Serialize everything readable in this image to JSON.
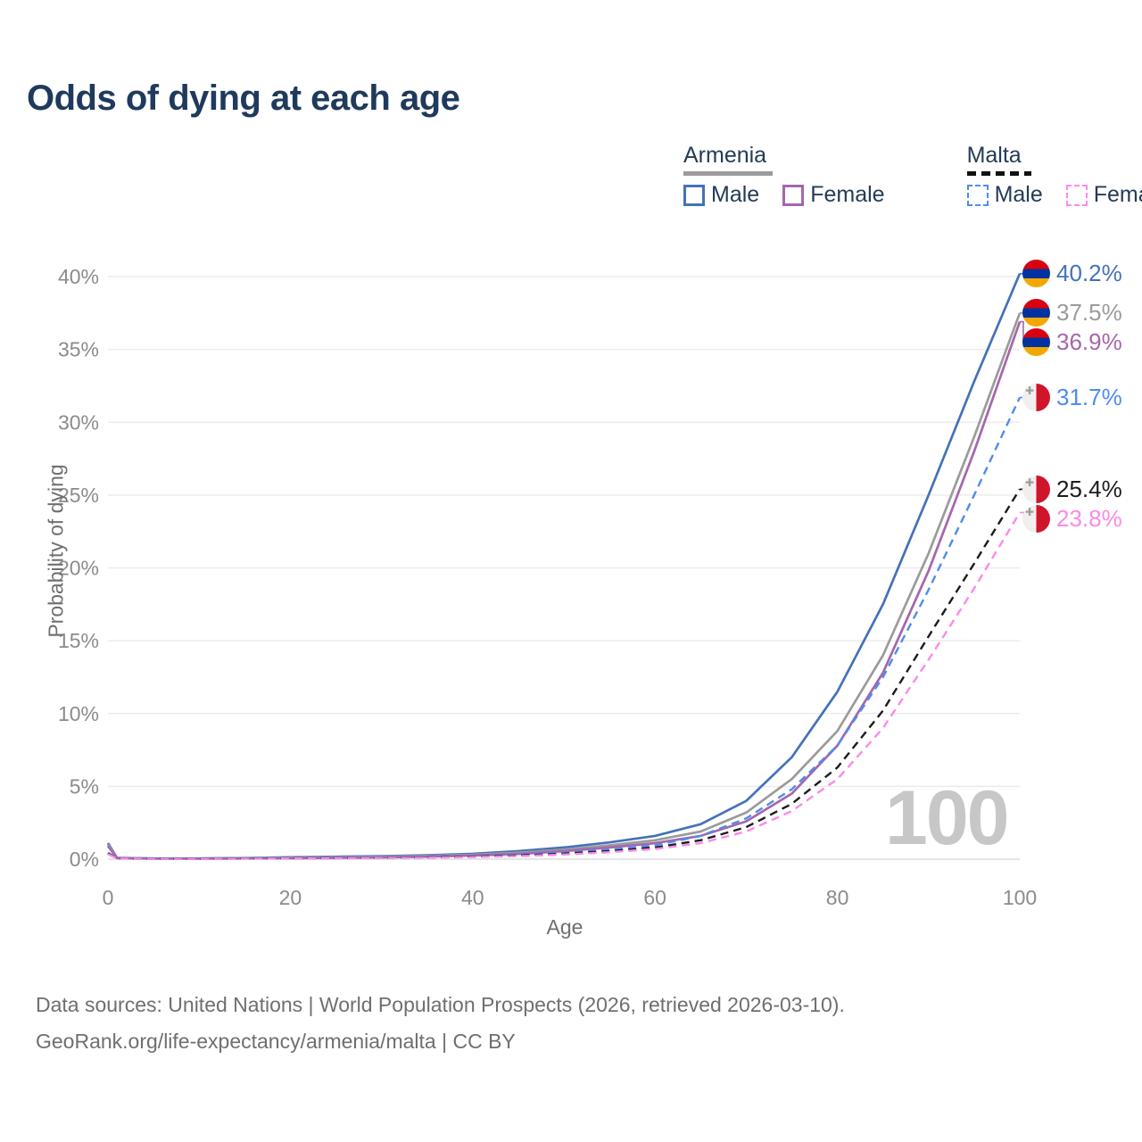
{
  "title": "Odds of dying at each age",
  "watermark": "100",
  "colors": {
    "title_text": "#1e3a5c",
    "axis_text": "#6f6f6f",
    "tick_text": "#8b8b8b",
    "gridline": "#ececec",
    "baseline": "#dcdcdc",
    "watermark": "#c7c7c7",
    "armenia_flag": [
      "#d90012",
      "#0033a0",
      "#f2a800"
    ],
    "malta_flag": [
      "#f1efed",
      "#cf142b"
    ]
  },
  "legend": {
    "groups": [
      {
        "country": "Armenia",
        "line_style": "solid",
        "line_color": "#9b9b9b",
        "items": [
          {
            "label": "Male",
            "color": "#4472b9",
            "dashed": false
          },
          {
            "label": "Female",
            "color": "#a666ad",
            "dashed": false
          }
        ]
      },
      {
        "country": "Malta",
        "line_style": "dashed",
        "line_color": "#111111",
        "items": [
          {
            "label": "Male",
            "color": "#4e8cf0",
            "dashed": true
          },
          {
            "label": "Female",
            "color": "#fb8ae8",
            "dashed": true
          }
        ]
      }
    ]
  },
  "chart_data": {
    "type": "line",
    "title": "Odds of dying at each age",
    "xlabel": "Age",
    "ylabel": "Probability of dying",
    "xlim": [
      0,
      100
    ],
    "ylim": [
      0,
      40
    ],
    "grid": "horizontal",
    "legend_position": "top-right",
    "x_ticks": [
      {
        "value": 0,
        "label": "0"
      },
      {
        "value": 20,
        "label": "20"
      },
      {
        "value": 40,
        "label": "40"
      },
      {
        "value": 60,
        "label": "60"
      },
      {
        "value": 80,
        "label": "80"
      },
      {
        "value": 100,
        "label": "100"
      }
    ],
    "y_ticks": [
      {
        "value": 0,
        "label": "0%"
      },
      {
        "value": 5,
        "label": "5%"
      },
      {
        "value": 10,
        "label": "10%"
      },
      {
        "value": 15,
        "label": "15%"
      },
      {
        "value": 20,
        "label": "20%"
      },
      {
        "value": 25,
        "label": "25%"
      },
      {
        "value": 30,
        "label": "30%"
      },
      {
        "value": 35,
        "label": "35%"
      },
      {
        "value": 40,
        "label": "40%"
      }
    ],
    "x": [
      0,
      1,
      5,
      10,
      15,
      20,
      25,
      30,
      35,
      40,
      45,
      50,
      55,
      60,
      65,
      70,
      75,
      80,
      85,
      90,
      95,
      100
    ],
    "series": [
      {
        "name": "Armenia Male",
        "country": "Armenia",
        "sex": "male",
        "flag": "armenia",
        "color": "#4472b9",
        "dashed": false,
        "end_label": "40.2%",
        "end_value": 40.2,
        "values": [
          1.1,
          0.09,
          0.05,
          0.05,
          0.08,
          0.13,
          0.17,
          0.21,
          0.27,
          0.37,
          0.55,
          0.8,
          1.15,
          1.6,
          2.4,
          4.0,
          7.0,
          11.5,
          17.5,
          25.0,
          32.8,
          40.2
        ]
      },
      {
        "name": "Armenia Both sexes",
        "country": "Armenia",
        "sex": "all",
        "flag": "armenia",
        "color": "#9b9b9b",
        "dashed": false,
        "end_label": "37.5%",
        "end_value": 37.5,
        "values": [
          1.0,
          0.08,
          0.04,
          0.04,
          0.07,
          0.1,
          0.13,
          0.17,
          0.22,
          0.3,
          0.45,
          0.65,
          0.95,
          1.3,
          1.9,
          3.2,
          5.5,
          8.8,
          14.0,
          21.0,
          29.0,
          37.5
        ]
      },
      {
        "name": "Armenia Female",
        "country": "Armenia",
        "sex": "female",
        "flag": "armenia",
        "color": "#a666ad",
        "dashed": false,
        "end_label": "36.9%",
        "end_value": 36.9,
        "values": [
          0.9,
          0.07,
          0.04,
          0.04,
          0.05,
          0.07,
          0.09,
          0.12,
          0.17,
          0.25,
          0.36,
          0.55,
          0.8,
          1.1,
          1.6,
          2.6,
          4.5,
          7.8,
          12.8,
          19.8,
          28.0,
          36.9
        ]
      },
      {
        "name": "Malta Male",
        "country": "Malta",
        "sex": "male",
        "flag": "malta",
        "color": "#4e8cf0",
        "dashed": true,
        "end_label": "31.7%",
        "end_value": 31.7,
        "values": [
          0.45,
          0.05,
          0.03,
          0.03,
          0.05,
          0.07,
          0.09,
          0.11,
          0.14,
          0.2,
          0.3,
          0.45,
          0.65,
          0.95,
          1.6,
          2.8,
          4.8,
          7.8,
          12.5,
          18.5,
          25.0,
          31.7
        ]
      },
      {
        "name": "Malta Both sexes",
        "country": "Malta",
        "sex": "all",
        "flag": "malta",
        "color": "#1c1c1c",
        "dashed": true,
        "end_label": "25.4%",
        "end_value": 25.4,
        "values": [
          0.4,
          0.04,
          0.03,
          0.03,
          0.04,
          0.06,
          0.07,
          0.09,
          0.12,
          0.17,
          0.25,
          0.38,
          0.55,
          0.8,
          1.3,
          2.2,
          3.8,
          6.3,
          10.2,
          15.3,
          20.3,
          25.4
        ]
      },
      {
        "name": "Malta Female",
        "country": "Malta",
        "sex": "female",
        "flag": "malta",
        "color": "#fb8ae8",
        "dashed": true,
        "end_label": "23.8%",
        "end_value": 23.8,
        "values": [
          0.35,
          0.04,
          0.02,
          0.02,
          0.03,
          0.05,
          0.06,
          0.08,
          0.1,
          0.14,
          0.21,
          0.32,
          0.48,
          0.7,
          1.1,
          1.9,
          3.3,
          5.5,
          9.0,
          13.7,
          18.6,
          23.8
        ]
      }
    ],
    "hover_age_indicator": "100"
  },
  "footer": {
    "line1": "Data sources: United Nations | World Population Prospects (2026, retrieved 2026-03-10).",
    "line2": "GeoRank.org/life-expectancy/armenia/malta | CC BY"
  }
}
